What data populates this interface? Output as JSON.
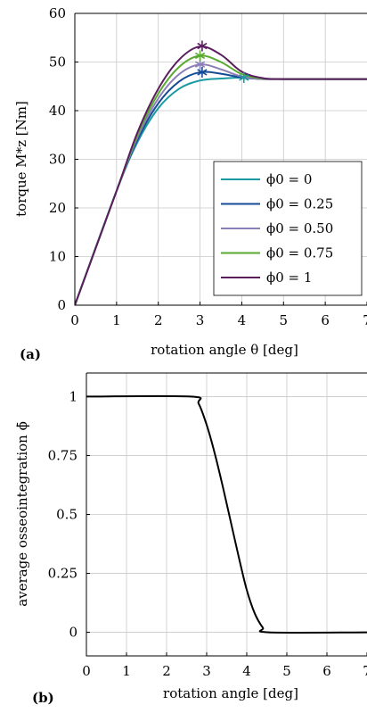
{
  "chart_data": [
    {
      "type": "line",
      "panel_label": "(a)",
      "xlabel": "rotation angle θ [deg]",
      "ylabel": "torque M*z [Nm]",
      "xlim": [
        0,
        7
      ],
      "ylim": [
        0,
        60
      ],
      "xticks": [
        "0",
        "1",
        "2",
        "3",
        "4",
        "5",
        "6",
        "7"
      ],
      "yticks": [
        "0",
        "10",
        "20",
        "30",
        "40",
        "50",
        "60"
      ],
      "grid": true,
      "legend": "bottom-right",
      "series": [
        {
          "name": "ϕ0 = 0",
          "color": "#1a9ba3",
          "peak": [
            4.05,
            46.8
          ],
          "x": [
            0,
            1,
            1.5,
            2,
            2.5,
            3,
            3.5,
            4,
            4.5,
            5,
            7
          ],
          "y": [
            0,
            23.5,
            33.5,
            40.5,
            44.5,
            46.2,
            46.6,
            46.8,
            46.6,
            46.5,
            46.5
          ]
        },
        {
          "name": "ϕ0 = 0.25",
          "color": "#154a96",
          "peak": [
            3.05,
            47.9
          ],
          "x": [
            0,
            1,
            1.5,
            2,
            2.5,
            3,
            3.5,
            4,
            4.5,
            5,
            7
          ],
          "y": [
            0,
            23.5,
            34,
            41.5,
            46,
            47.9,
            47.6,
            46.8,
            46.5,
            46.5,
            46.5
          ]
        },
        {
          "name": "ϕ0 = 0.50",
          "color": "#8c7fb8",
          "peak": [
            3.0,
            49.5
          ],
          "x": [
            0,
            1,
            1.5,
            2,
            2.5,
            3,
            3.5,
            4,
            4.5,
            5,
            7
          ],
          "y": [
            0,
            23.5,
            34.5,
            42.5,
            47.5,
            49.5,
            48.5,
            47,
            46.5,
            46.5,
            46.5
          ]
        },
        {
          "name": "ϕ0 = 0.75",
          "color": "#5aaa32",
          "peak": [
            3.0,
            51.3
          ],
          "x": [
            0,
            1,
            1.5,
            2,
            2.5,
            3,
            3.5,
            4,
            4.5,
            5,
            7
          ],
          "y": [
            0,
            23.5,
            35,
            43.5,
            49,
            51.3,
            50,
            47.5,
            46.6,
            46.5,
            46.5
          ]
        },
        {
          "name": "ϕ0 = 1",
          "color": "#5a1e5e",
          "peak": [
            3.05,
            53.3
          ],
          "x": [
            0,
            1,
            1.5,
            2,
            2.5,
            3,
            3.5,
            4,
            4.5,
            5,
            7
          ],
          "y": [
            0,
            23.5,
            35.5,
            44.5,
            50.5,
            53.2,
            51.5,
            48,
            46.7,
            46.5,
            46.5
          ]
        }
      ]
    },
    {
      "type": "line",
      "panel_label": "(b)",
      "xlabel": "rotation angle [deg]",
      "ylabel": "average osseointegration ϕ̄",
      "xlim": [
        0,
        7
      ],
      "ylim": [
        -0.1,
        1.1
      ],
      "xticks": [
        "0",
        "1",
        "2",
        "3",
        "4",
        "5",
        "6",
        "7"
      ],
      "yticks": [
        "0",
        "0.25",
        "0.5",
        "0.75",
        "1"
      ],
      "ytick_values": [
        0,
        0.25,
        0.5,
        0.75,
        1
      ],
      "grid": true,
      "series": [
        {
          "color": "#000000",
          "x": [
            0,
            2.6,
            2.8,
            3.0,
            3.2,
            3.4,
            3.6,
            3.8,
            4.0,
            4.2,
            4.4,
            4.55,
            7
          ],
          "y": [
            1,
            1,
            0.97,
            0.88,
            0.76,
            0.62,
            0.47,
            0.32,
            0.18,
            0.08,
            0.02,
            0,
            0
          ]
        }
      ]
    }
  ]
}
